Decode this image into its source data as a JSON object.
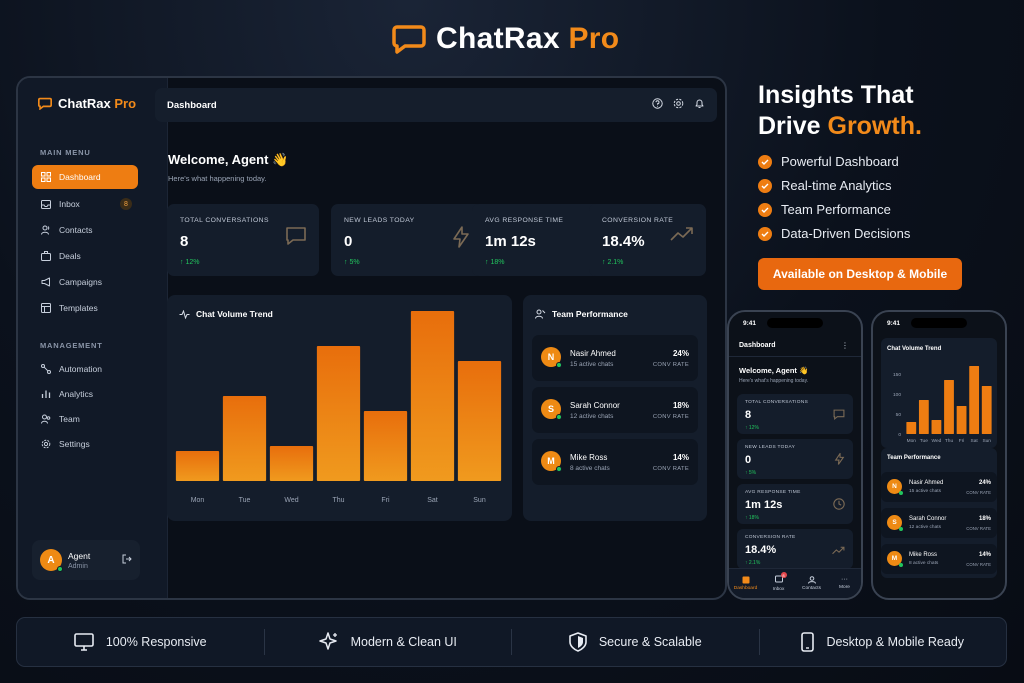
{
  "hero": {
    "brand": "ChatRax",
    "brand_accent": "Pro"
  },
  "laptop": {
    "brand": "ChatRax",
    "brand_accent": "Pro",
    "main_menu_label": "MAIN MENU",
    "main_menu": [
      {
        "label": "Dashboard",
        "icon": "grid-icon"
      },
      {
        "label": "Inbox",
        "icon": "inbox-icon",
        "badge": "8"
      },
      {
        "label": "Contacts",
        "icon": "users-icon"
      },
      {
        "label": "Deals",
        "icon": "briefcase-icon"
      },
      {
        "label": "Campaigns",
        "icon": "megaphone-icon"
      },
      {
        "label": "Templates",
        "icon": "template-icon"
      }
    ],
    "management_label": "MANAGEMENT",
    "management": [
      {
        "label": "Automation",
        "icon": "automation-icon"
      },
      {
        "label": "Analytics",
        "icon": "bar-chart-icon"
      },
      {
        "label": "Team",
        "icon": "team-icon"
      },
      {
        "label": "Settings",
        "icon": "gear-icon"
      }
    ],
    "user": {
      "initial": "A",
      "name": "Agent",
      "role": "Admin"
    },
    "topbar_title": "Dashboard",
    "welcome": "Welcome, Agent 👋",
    "welcome_sub": "Here's what happening today.",
    "stats": [
      {
        "label": "TOTAL CONVERSATIONS",
        "value": "8",
        "change": "↑ 12%",
        "icon": "chat-icon"
      },
      {
        "label": "NEW LEADS TODAY",
        "value": "0",
        "change": "↑ 5%",
        "icon": "lightning-icon"
      },
      {
        "label": "AVG RESPONSE TIME",
        "value": "1m 12s",
        "change": "↑ 18%",
        "icon": "clock-icon"
      },
      {
        "label": "CONVERSION RATE",
        "value": "18.4%",
        "change": "↑ 2.1%",
        "icon": "trend-up-icon"
      }
    ],
    "chart_title": "Chat Volume Trend",
    "team_title": "Team Performance",
    "team": [
      {
        "initial": "N",
        "name": "Nasir Ahmed",
        "sub": "15 active chats",
        "pct": "24%",
        "rate_label": "CONV RATE"
      },
      {
        "initial": "S",
        "name": "Sarah Connor",
        "sub": "12 active chats",
        "pct": "18%",
        "rate_label": "CONV RATE"
      },
      {
        "initial": "M",
        "name": "Mike Ross",
        "sub": "8 active chats",
        "pct": "14%",
        "rate_label": "CONV RATE"
      }
    ]
  },
  "chart_data": {
    "type": "bar",
    "categories": [
      "Mon",
      "Tue",
      "Wed",
      "Thu",
      "Fri",
      "Sat",
      "Sun"
    ],
    "values": [
      30,
      85,
      35,
      135,
      70,
      170,
      120
    ],
    "ylim": [
      0,
      200
    ],
    "phone_ticks": [
      "150",
      "100",
      "50",
      "0"
    ],
    "bar_color": "#ee7d12"
  },
  "marketing": {
    "headline_1": "Insights That",
    "headline_2": "Drive",
    "headline_accent": "Growth.",
    "features": [
      "Powerful Dashboard",
      "Real-time Analytics",
      "Team Performance",
      "Data-Driven Decisions"
    ],
    "cta": "Available on Desktop & Mobile"
  },
  "phone1": {
    "time": "9:41",
    "title": "Dashboard",
    "welcome": "Welcome, Agent 👋",
    "welcome_sub": "Here's what's happening today.",
    "tabs": [
      {
        "label": "Dashboard",
        "icon": "home-icon"
      },
      {
        "label": "Inbox",
        "icon": "inbox-icon",
        "badge": "8"
      },
      {
        "label": "Contacts",
        "icon": "user-icon"
      },
      {
        "label": "More",
        "icon": "more-icon"
      }
    ]
  },
  "phone2": {
    "time": "9:41",
    "chart_title": "Chat Volume Trend",
    "team_title": "Team Performance"
  },
  "strip": [
    "100% Responsive",
    "Modern & Clean UI",
    "Secure & Scalable",
    "Desktop & Mobile Ready"
  ],
  "colors": {
    "accent": "#ee7d12",
    "background": "#0b111c",
    "panel": "#141d2b",
    "positive": "#22c55e"
  }
}
